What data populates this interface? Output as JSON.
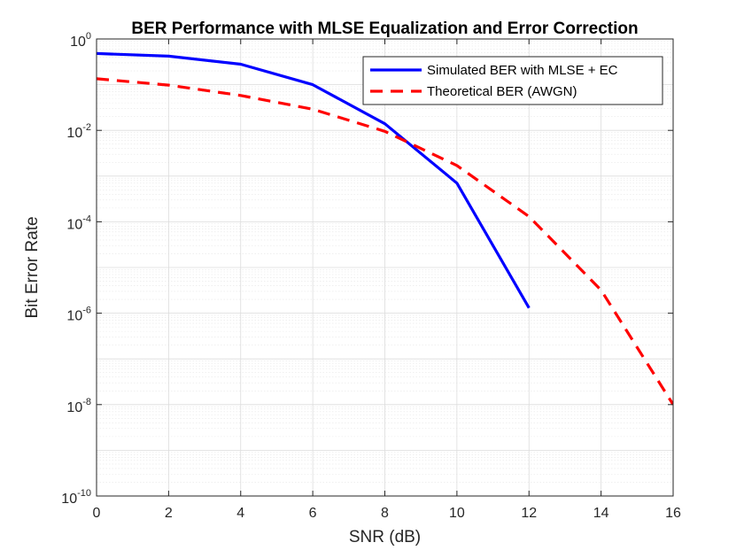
{
  "chart_data": {
    "type": "line",
    "title": "BER Performance with MLSE Equalization and Error Correction",
    "xlabel": "SNR (dB)",
    "ylabel": "Bit Error Rate",
    "xlim": [
      0,
      16
    ],
    "ylim": [
      1e-10,
      1
    ],
    "yscale": "log",
    "grid": true,
    "minor_grid": true,
    "legend_position": "top-right",
    "x_ticks": [
      "0",
      "2",
      "4",
      "6",
      "8",
      "10",
      "12",
      "14",
      "16"
    ],
    "y_ticks": [
      {
        "base": "10",
        "exp": "-10",
        "value": 1e-10
      },
      {
        "base": "10",
        "exp": "-8",
        "value": 1e-08
      },
      {
        "base": "10",
        "exp": "-6",
        "value": 1e-06
      },
      {
        "base": "10",
        "exp": "-4",
        "value": 0.0001
      },
      {
        "base": "10",
        "exp": "-2",
        "value": 0.01
      },
      {
        "base": "10",
        "exp": "0",
        "value": 1
      }
    ],
    "series": [
      {
        "name": "Simulated BER with MLSE + EC",
        "color": "#0000ff",
        "style": "solid",
        "x": [
          0,
          2,
          4,
          6,
          8,
          10,
          12
        ],
        "y": [
          0.48,
          0.42,
          0.28,
          0.1,
          0.014,
          0.0007,
          1.3e-06
        ]
      },
      {
        "name": "Theoretical BER (AWGN)",
        "color": "#ff0000",
        "style": "dashed",
        "x": [
          0,
          2,
          4,
          6,
          8,
          10,
          12,
          14,
          16
        ],
        "y": [
          0.135,
          0.098,
          0.058,
          0.029,
          0.0095,
          0.0017,
          0.00013,
          3.2e-06,
          1e-08
        ]
      }
    ]
  }
}
